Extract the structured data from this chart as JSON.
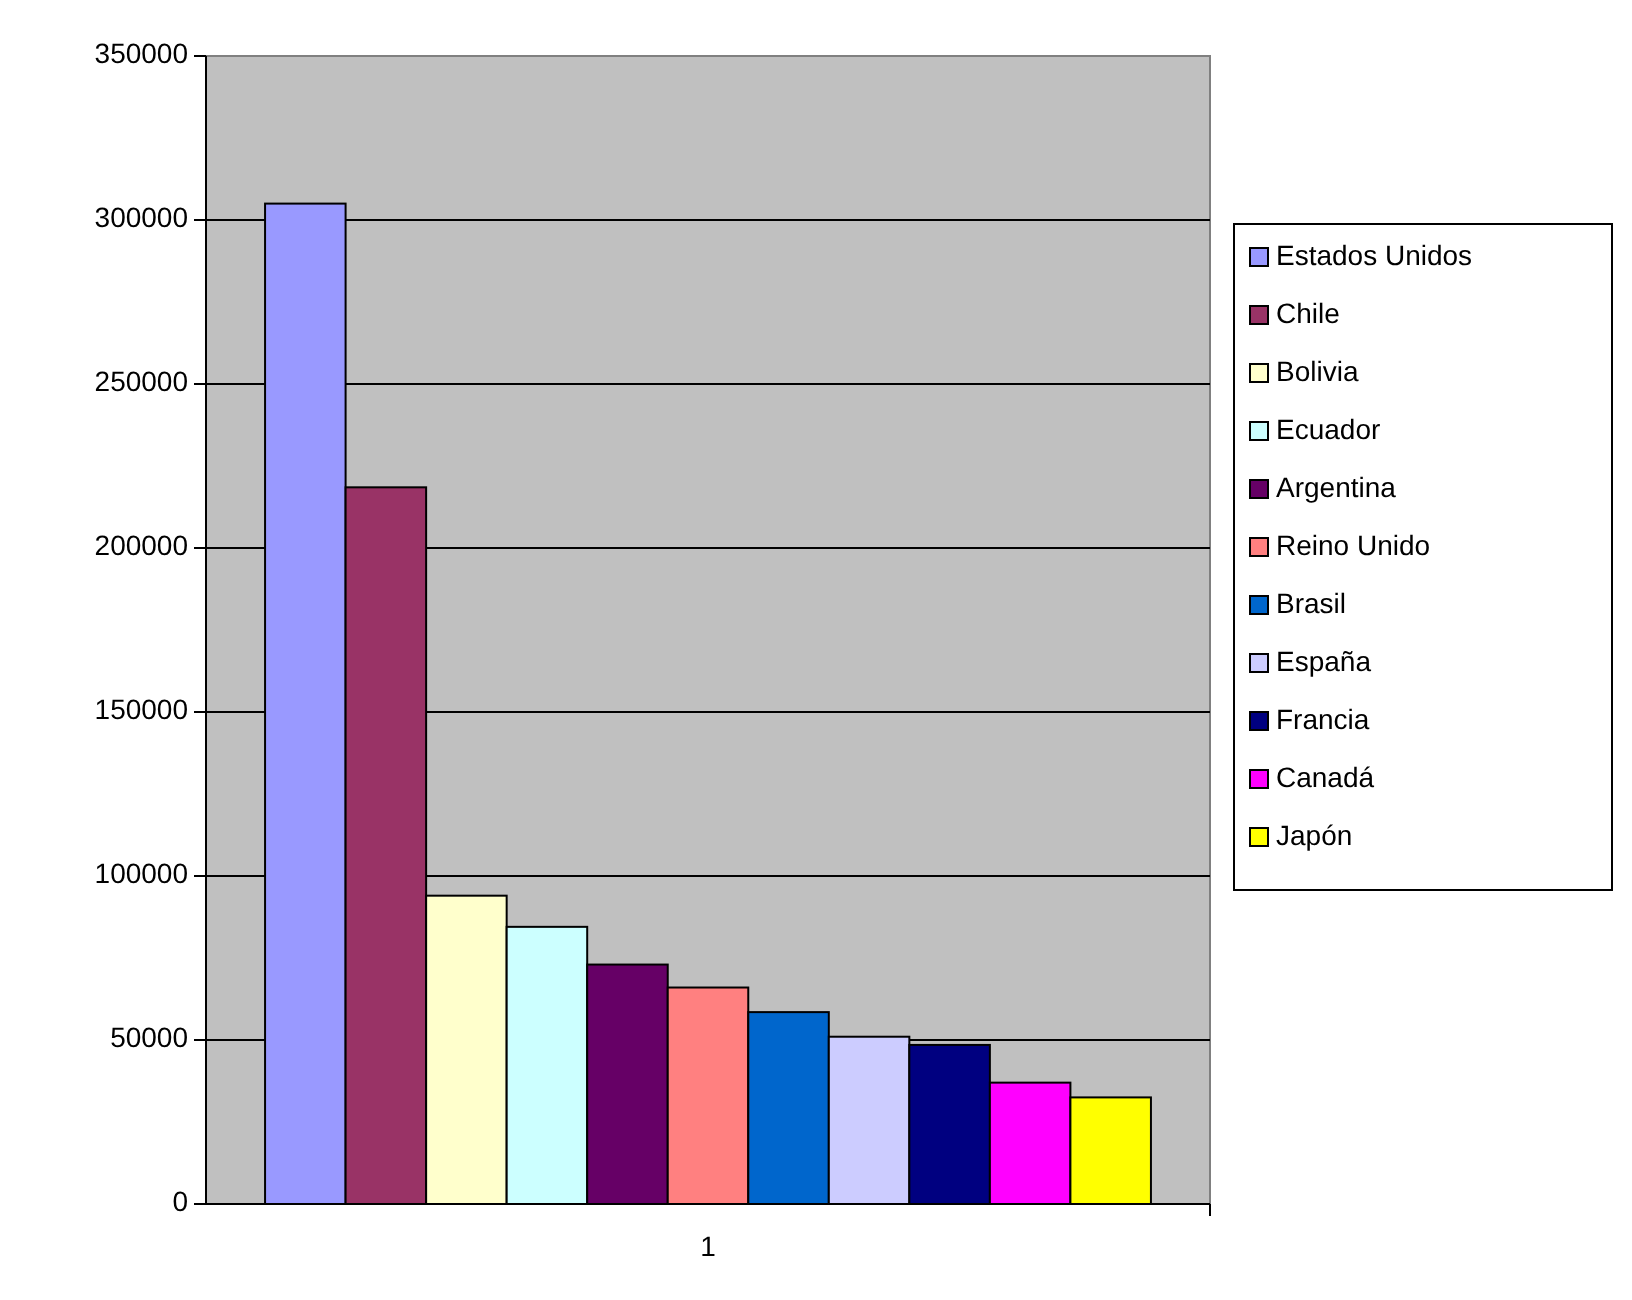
{
  "chart_data": {
    "type": "bar",
    "categories": [
      "1"
    ],
    "series": [
      {
        "name": "Estados Unidos",
        "color": "#9999ff",
        "values": [
          305000
        ]
      },
      {
        "name": "Chile",
        "color": "#993366",
        "values": [
          218500
        ]
      },
      {
        "name": "Bolivia",
        "color": "#ffffcc",
        "values": [
          94000
        ]
      },
      {
        "name": "Ecuador",
        "color": "#ccffff",
        "values": [
          84500
        ]
      },
      {
        "name": "Argentina",
        "color": "#660066",
        "values": [
          73000
        ]
      },
      {
        "name": "Reino Unido",
        "color": "#ff8080",
        "values": [
          66000
        ]
      },
      {
        "name": "Brasil",
        "color": "#0066cc",
        "values": [
          58500
        ]
      },
      {
        "name": "España",
        "color": "#ccccff",
        "values": [
          51000
        ]
      },
      {
        "name": "Francia",
        "color": "#000080",
        "values": [
          48500
        ]
      },
      {
        "name": "Canadá",
        "color": "#ff00ff",
        "values": [
          37000
        ]
      },
      {
        "name": "Japón",
        "color": "#ffff00",
        "values": [
          32500
        ]
      }
    ],
    "ylim": [
      0,
      350000
    ],
    "yticks": [
      0,
      50000,
      100000,
      150000,
      200000,
      250000,
      300000,
      350000
    ],
    "grid": "y",
    "legend": "right"
  }
}
